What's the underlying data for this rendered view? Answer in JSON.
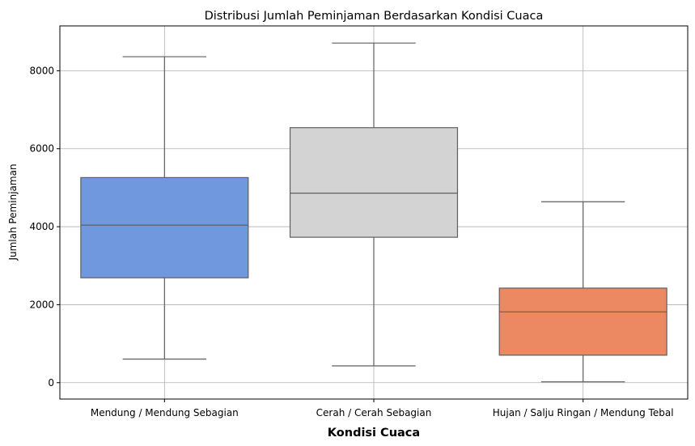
{
  "chart_data": {
    "type": "box",
    "title": "Distribusi Jumlah Peminjaman Berdasarkan Kondisi Cuaca",
    "xlabel": "Kondisi Cuaca",
    "ylabel": "Jumlah Peminjaman",
    "ylim": [
      -420,
      9150
    ],
    "yticks": [
      0,
      2000,
      4000,
      6000,
      8000
    ],
    "grid": true,
    "categories": [
      "Mendung / Mendung Sebagian",
      "Cerah / Cerah Sebagian",
      "Hujan / Salju Ringan / Mendung Tebal"
    ],
    "boxes": [
      {
        "category": "Mendung / Mendung Sebagian",
        "min": 605,
        "q1": 2690,
        "median": 4040,
        "q3": 5260,
        "max": 8360,
        "color": "#6f98de"
      },
      {
        "category": "Cerah / Cerah Sebagian",
        "min": 431,
        "q1": 3730,
        "median": 4860,
        "q3": 6540,
        "max": 8710,
        "color": "#d3d3d3"
      },
      {
        "category": "Hujan / Salju Ringan / Mendung Tebal",
        "min": 22,
        "q1": 705,
        "median": 1815,
        "q3": 2425,
        "max": 4640,
        "color": "#ec8862"
      }
    ]
  }
}
